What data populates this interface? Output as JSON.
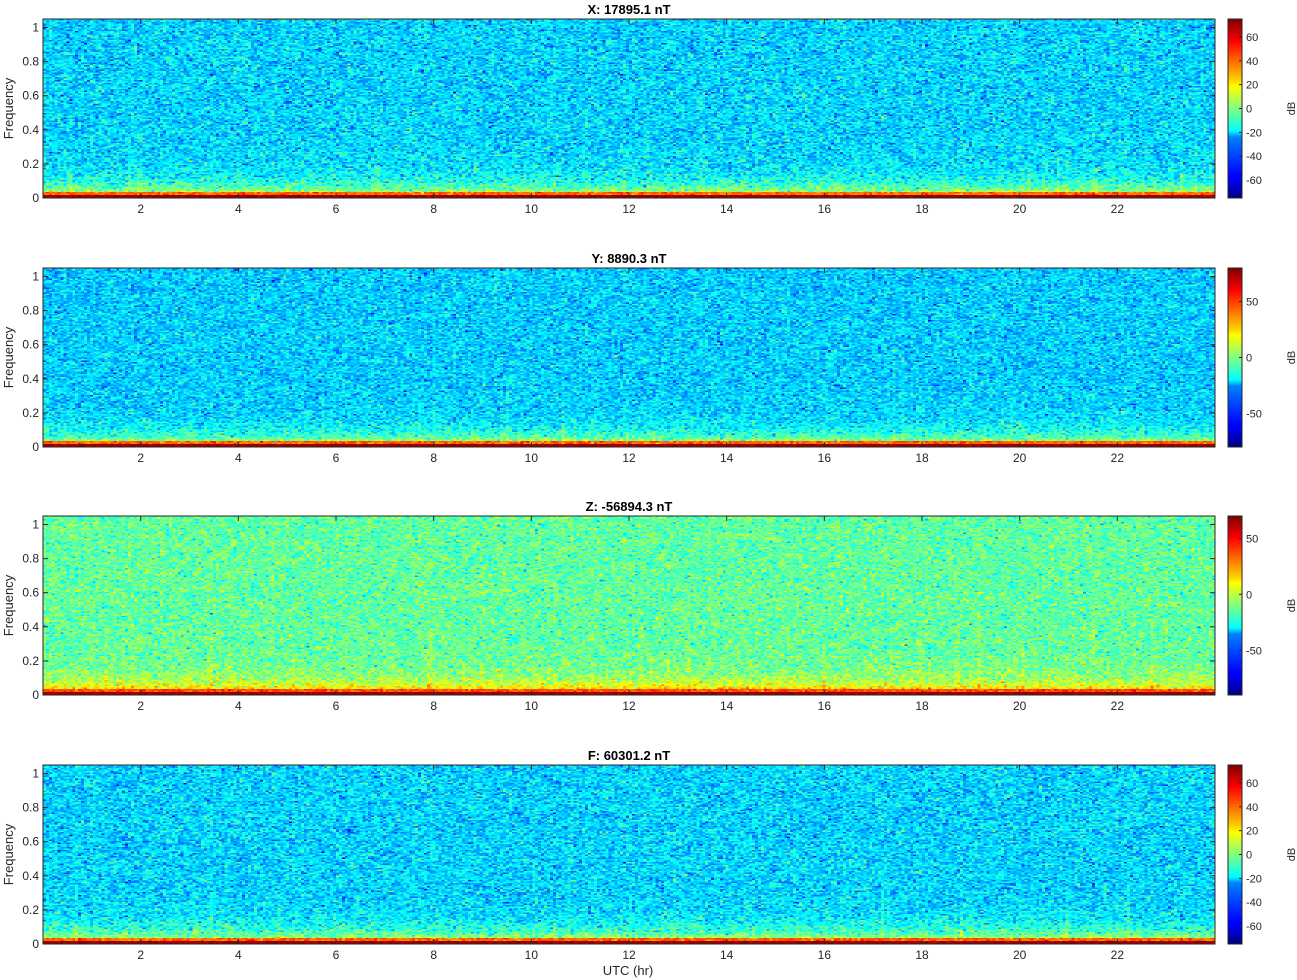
{
  "chart_data": [
    {
      "type": "heatmap",
      "title": "X: 17895.1 nT",
      "ylabel": "Frequency",
      "xlabel": "",
      "x_ticks": [
        2,
        4,
        6,
        8,
        10,
        12,
        14,
        16,
        18,
        20,
        22
      ],
      "y_ticks": [
        0,
        0.2,
        0.4,
        0.6,
        0.8,
        1
      ],
      "xlim": [
        0,
        24
      ],
      "ylim": [
        0,
        1.05
      ],
      "colorbar": {
        "label": "dB",
        "range": [
          -75,
          75
        ],
        "ticks": [
          -60,
          -40,
          -20,
          0,
          20,
          40,
          60
        ]
      },
      "background_level_db": -25,
      "low_freq_level_db": 75
    },
    {
      "type": "heatmap",
      "title": "Y: 8890.3 nT",
      "ylabel": "Frequency",
      "xlabel": "",
      "x_ticks": [
        2,
        4,
        6,
        8,
        10,
        12,
        14,
        16,
        18,
        20,
        22
      ],
      "y_ticks": [
        0,
        0.2,
        0.4,
        0.6,
        0.8,
        1
      ],
      "xlim": [
        0,
        24
      ],
      "ylim": [
        0,
        1.05
      ],
      "colorbar": {
        "label": "dB",
        "range": [
          -80,
          80
        ],
        "ticks": [
          -50,
          0,
          50
        ]
      },
      "background_level_db": -28,
      "low_freq_level_db": 80
    },
    {
      "type": "heatmap",
      "title": "Z: -56894.3 nT",
      "ylabel": "Frequency",
      "xlabel": "",
      "x_ticks": [
        2,
        4,
        6,
        8,
        10,
        12,
        14,
        16,
        18,
        20,
        22
      ],
      "y_ticks": [
        0,
        0.2,
        0.4,
        0.6,
        0.8,
        1
      ],
      "xlim": [
        0,
        24
      ],
      "ylim": [
        0,
        1.05
      ],
      "colorbar": {
        "label": "dB",
        "range": [
          -90,
          70
        ],
        "ticks": [
          -50,
          0,
          50
        ]
      },
      "background_level_db": -15,
      "low_freq_level_db": 70
    },
    {
      "type": "heatmap",
      "title": "F: 60301.2 nT",
      "ylabel": "Frequency",
      "xlabel": "UTC (hr)",
      "x_ticks": [
        2,
        4,
        6,
        8,
        10,
        12,
        14,
        16,
        18,
        20,
        22
      ],
      "y_ticks": [
        0,
        0.2,
        0.4,
        0.6,
        0.8,
        1
      ],
      "xlim": [
        0,
        24
      ],
      "ylim": [
        0,
        1.05
      ],
      "colorbar": {
        "label": "dB",
        "range": [
          -75,
          75
        ],
        "ticks": [
          -60,
          -40,
          -20,
          0,
          20,
          40,
          60
        ]
      },
      "background_level_db": -25,
      "low_freq_level_db": 75
    }
  ],
  "colormap": "jet"
}
